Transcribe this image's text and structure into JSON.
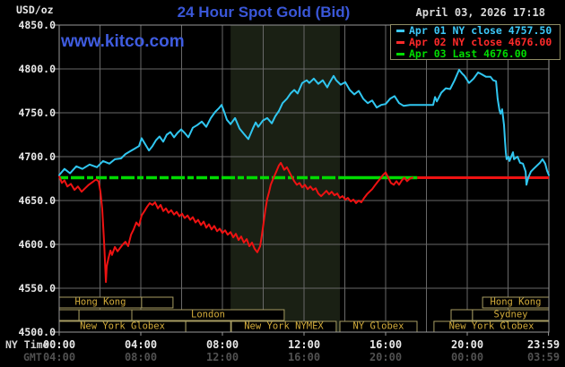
{
  "header": {
    "units": "USD/oz",
    "title": "24 Hour Spot Gold (Bid)",
    "datetime": "April 03, 2026 17:18",
    "watermark": "www.kitco.com"
  },
  "legend": {
    "items": [
      {
        "label": "Apr 01 NY close 4757.50",
        "color": "#3cc8f8"
      },
      {
        "label": "Apr 02 NY close 4676.00",
        "color": "#ff2a2a"
      },
      {
        "label": "Apr 03 Last 4676.00",
        "color": "#00dd00"
      }
    ]
  },
  "footer": {
    "ny_label": "NY Time",
    "gmt_label": "GMT"
  },
  "chart_data": {
    "type": "line",
    "title": "24 Hour Spot Gold (Bid)",
    "ylabel": "USD/oz",
    "colors": {
      "plot_bg": "#000000",
      "band": "#1a2014",
      "grid": "#686868",
      "border": "#989898",
      "tick_label": "#e8e8e8",
      "gmt_label": "#515151",
      "session_border": "#a79d62",
      "session_text": "#d2ab3a",
      "cyan": "#30c6f0",
      "red": "#ee1212",
      "green": "#00da00"
    },
    "x_axis": {
      "range_hours": [
        0,
        24
      ],
      "tick_hours": [
        0,
        4,
        8,
        12,
        16,
        20,
        23.983
      ],
      "ny_ticks": [
        "00:00",
        "04:00",
        "08:00",
        "12:00",
        "16:00",
        "20:00",
        "23:59"
      ],
      "gmt_ticks": [
        "04:00",
        "08:00",
        "12:00",
        "16:00",
        "20:00",
        "00:00",
        "03:59"
      ]
    },
    "y_axis": {
      "units": "USD/oz",
      "range": [
        4500,
        4850
      ],
      "tick_step": 50,
      "ticks": [
        "4850.0",
        "4800.0",
        "4750.0",
        "4700.0",
        "4650.0",
        "4600.0",
        "4550.0",
        "4500.0"
      ]
    },
    "grid": {
      "x_step_hours": 2,
      "y_step": 50
    },
    "shaded_band_hours": [
      8.4,
      13.76
    ],
    "ref_lines": [
      {
        "name": "apr03-last-dashed",
        "value": 4676.0,
        "color": "#00da00",
        "style": "dashed",
        "from_hour": 0,
        "to_hour": 13.7,
        "width": 3.5
      },
      {
        "name": "apr03-last-solid",
        "value": 4676.0,
        "color": "#00da00",
        "style": "solid",
        "from_hour": 13.7,
        "to_hour": 17.55,
        "width": 3.5
      },
      {
        "name": "apr02-close",
        "value": 4676.0,
        "color": "#ee1212",
        "style": "solid",
        "from_hour": 17.55,
        "to_hour": 24,
        "width": 3
      }
    ],
    "sessions": [
      [
        {
          "from": 0,
          "to": 4.04,
          "label": "Hong Kong"
        },
        {
          "from": 4.04,
          "to": 5.58,
          "label": ""
        },
        {
          "from": 20.75,
          "to": 24,
          "label": "Hong Kong"
        }
      ],
      [
        {
          "from": 0,
          "to": 0.97,
          "label": ""
        },
        {
          "from": 0.97,
          "to": 3.56,
          "label": ""
        },
        {
          "from": 3.56,
          "to": 11.03,
          "label": "London"
        },
        {
          "from": 19.21,
          "to": 20.26,
          "label": ""
        },
        {
          "from": 20.26,
          "to": 24,
          "label": "Sydney"
        }
      ],
      [
        {
          "from": 0,
          "to": 6.2,
          "label": "New York Globex"
        },
        {
          "from": 6.2,
          "to": 8.4,
          "label": ""
        },
        {
          "from": 8.44,
          "to": 13.58,
          "label": "New York NYMEX"
        },
        {
          "from": 13.76,
          "to": 17.54,
          "label": "NY Globex"
        },
        {
          "from": 18.37,
          "to": 24,
          "label": "New York Globex"
        }
      ]
    ],
    "series": [
      {
        "name": "previous-day",
        "color": "#30c6f0",
        "width": 2,
        "points": [
          [
            0,
            4679
          ],
          [
            0.26,
            4686
          ],
          [
            0.53,
            4681
          ],
          [
            0.84,
            4689
          ],
          [
            1.14,
            4686
          ],
          [
            1.49,
            4691
          ],
          [
            1.85,
            4688
          ],
          [
            2.15,
            4695
          ],
          [
            2.46,
            4692
          ],
          [
            2.73,
            4697
          ],
          [
            3.03,
            4698
          ],
          [
            3.25,
            4703
          ],
          [
            3.47,
            4706
          ],
          [
            3.69,
            4709
          ],
          [
            3.91,
            4712
          ],
          [
            4.04,
            4721
          ],
          [
            4.22,
            4714
          ],
          [
            4.4,
            4707
          ],
          [
            4.57,
            4712
          ],
          [
            4.75,
            4719
          ],
          [
            4.92,
            4723
          ],
          [
            5.1,
            4717
          ],
          [
            5.27,
            4725
          ],
          [
            5.45,
            4728
          ],
          [
            5.63,
            4722
          ],
          [
            5.8,
            4727
          ],
          [
            5.98,
            4731
          ],
          [
            6.15,
            4727
          ],
          [
            6.33,
            4722
          ],
          [
            6.55,
            4733
          ],
          [
            6.77,
            4736
          ],
          [
            6.99,
            4740
          ],
          [
            7.21,
            4734
          ],
          [
            7.43,
            4744
          ],
          [
            7.65,
            4751
          ],
          [
            7.82,
            4755
          ],
          [
            7.96,
            4759
          ],
          [
            8.09,
            4751
          ],
          [
            8.22,
            4742
          ],
          [
            8.4,
            4737
          ],
          [
            8.62,
            4744
          ],
          [
            8.84,
            4732
          ],
          [
            9.05,
            4726
          ],
          [
            9.27,
            4720
          ],
          [
            9.49,
            4732
          ],
          [
            9.63,
            4739
          ],
          [
            9.76,
            4734
          ],
          [
            9.98,
            4741
          ],
          [
            10.2,
            4744
          ],
          [
            10.42,
            4738
          ],
          [
            10.59,
            4746
          ],
          [
            10.77,
            4752
          ],
          [
            10.95,
            4761
          ],
          [
            11.16,
            4766
          ],
          [
            11.34,
            4772
          ],
          [
            11.52,
            4776
          ],
          [
            11.69,
            4772
          ],
          [
            11.91,
            4784
          ],
          [
            12.13,
            4787
          ],
          [
            12.26,
            4784
          ],
          [
            12.48,
            4789
          ],
          [
            12.7,
            4783
          ],
          [
            12.92,
            4787
          ],
          [
            13.14,
            4779
          ],
          [
            13.27,
            4785
          ],
          [
            13.45,
            4792
          ],
          [
            13.58,
            4787
          ],
          [
            13.8,
            4782
          ],
          [
            14.02,
            4785
          ],
          [
            14.24,
            4776
          ],
          [
            14.46,
            4771
          ],
          [
            14.68,
            4775
          ],
          [
            14.9,
            4766
          ],
          [
            15.12,
            4761
          ],
          [
            15.34,
            4764
          ],
          [
            15.56,
            4756
          ],
          [
            15.78,
            4759
          ],
          [
            16,
            4760
          ],
          [
            16.22,
            4766
          ],
          [
            16.44,
            4769
          ],
          [
            16.66,
            4761
          ],
          [
            16.88,
            4758
          ],
          [
            17.19,
            4759
          ],
          [
            18.33,
            4759
          ],
          [
            18.42,
            4768
          ],
          [
            18.51,
            4763
          ],
          [
            18.73,
            4773
          ],
          [
            18.95,
            4778
          ],
          [
            19.16,
            4777
          ],
          [
            19.38,
            4787
          ],
          [
            19.6,
            4799
          ],
          [
            19.74,
            4795
          ],
          [
            19.87,
            4792
          ],
          [
            20.09,
            4784
          ],
          [
            20.31,
            4789
          ],
          [
            20.53,
            4796
          ],
          [
            20.7,
            4794
          ],
          [
            20.92,
            4791
          ],
          [
            21.14,
            4791
          ],
          [
            21.27,
            4787
          ],
          [
            21.41,
            4786
          ],
          [
            21.49,
            4766
          ],
          [
            21.58,
            4753
          ],
          [
            21.63,
            4749
          ],
          [
            21.71,
            4754
          ],
          [
            21.8,
            4736
          ],
          [
            21.85,
            4718
          ],
          [
            21.89,
            4705
          ],
          [
            21.93,
            4697
          ],
          [
            22.02,
            4700
          ],
          [
            22.07,
            4695
          ],
          [
            22.24,
            4705
          ],
          [
            22.29,
            4697
          ],
          [
            22.46,
            4700
          ],
          [
            22.59,
            4693
          ],
          [
            22.73,
            4692
          ],
          [
            22.86,
            4683
          ],
          [
            22.9,
            4668
          ],
          [
            22.99,
            4676
          ],
          [
            23.12,
            4683
          ],
          [
            23.25,
            4686
          ],
          [
            23.38,
            4689
          ],
          [
            23.56,
            4693
          ],
          [
            23.69,
            4697
          ],
          [
            23.82,
            4692
          ],
          [
            23.91,
            4684
          ],
          [
            24,
            4679
          ]
        ]
      },
      {
        "name": "current-day",
        "color": "#ee1212",
        "width": 2,
        "points": [
          [
            0,
            4678
          ],
          [
            0.13,
            4670
          ],
          [
            0.26,
            4673
          ],
          [
            0.4,
            4666
          ],
          [
            0.57,
            4669
          ],
          [
            0.75,
            4662
          ],
          [
            0.92,
            4666
          ],
          [
            1.1,
            4660
          ],
          [
            1.27,
            4664
          ],
          [
            1.45,
            4668
          ],
          [
            1.63,
            4671
          ],
          [
            1.8,
            4674
          ],
          [
            1.93,
            4672
          ],
          [
            2.02,
            4660
          ],
          [
            2.11,
            4640
          ],
          [
            2.2,
            4602
          ],
          [
            2.29,
            4557
          ],
          [
            2.33,
            4575
          ],
          [
            2.42,
            4585
          ],
          [
            2.51,
            4593
          ],
          [
            2.59,
            4588
          ],
          [
            2.73,
            4597
          ],
          [
            2.86,
            4592
          ],
          [
            2.99,
            4596
          ],
          [
            3.12,
            4600
          ],
          [
            3.25,
            4603
          ],
          [
            3.38,
            4598
          ],
          [
            3.52,
            4611
          ],
          [
            3.65,
            4617
          ],
          [
            3.78,
            4625
          ],
          [
            3.91,
            4621
          ],
          [
            4.04,
            4633
          ],
          [
            4.18,
            4638
          ],
          [
            4.31,
            4643
          ],
          [
            4.44,
            4647
          ],
          [
            4.57,
            4645
          ],
          [
            4.7,
            4648
          ],
          [
            4.84,
            4641
          ],
          [
            4.97,
            4645
          ],
          [
            5.1,
            4638
          ],
          [
            5.23,
            4641
          ],
          [
            5.36,
            4636
          ],
          [
            5.49,
            4639
          ],
          [
            5.63,
            4634
          ],
          [
            5.76,
            4637
          ],
          [
            5.89,
            4632
          ],
          [
            6.02,
            4635
          ],
          [
            6.15,
            4630
          ],
          [
            6.29,
            4633
          ],
          [
            6.42,
            4628
          ],
          [
            6.55,
            4631
          ],
          [
            6.68,
            4625
          ],
          [
            6.81,
            4628
          ],
          [
            6.95,
            4622
          ],
          [
            7.08,
            4626
          ],
          [
            7.21,
            4619
          ],
          [
            7.34,
            4623
          ],
          [
            7.47,
            4617
          ],
          [
            7.6,
            4621
          ],
          [
            7.74,
            4615
          ],
          [
            7.87,
            4618
          ],
          [
            8,
            4613
          ],
          [
            8.13,
            4616
          ],
          [
            8.26,
            4611
          ],
          [
            8.4,
            4614
          ],
          [
            8.53,
            4608
          ],
          [
            8.66,
            4612
          ],
          [
            8.79,
            4605
          ],
          [
            8.92,
            4609
          ],
          [
            9.05,
            4602
          ],
          [
            9.19,
            4606
          ],
          [
            9.32,
            4598
          ],
          [
            9.45,
            4602
          ],
          [
            9.58,
            4595
          ],
          [
            9.71,
            4591
          ],
          [
            9.85,
            4598
          ],
          [
            9.93,
            4610
          ],
          [
            10.02,
            4625
          ],
          [
            10.11,
            4640
          ],
          [
            10.2,
            4652
          ],
          [
            10.29,
            4660
          ],
          [
            10.37,
            4668
          ],
          [
            10.51,
            4676
          ],
          [
            10.64,
            4683
          ],
          [
            10.77,
            4690
          ],
          [
            10.86,
            4693
          ],
          [
            10.95,
            4689
          ],
          [
            11.03,
            4685
          ],
          [
            11.16,
            4688
          ],
          [
            11.25,
            4684
          ],
          [
            11.38,
            4678
          ],
          [
            11.52,
            4672
          ],
          [
            11.65,
            4668
          ],
          [
            11.78,
            4670
          ],
          [
            11.91,
            4665
          ],
          [
            12.04,
            4668
          ],
          [
            12.18,
            4663
          ],
          [
            12.31,
            4666
          ],
          [
            12.44,
            4662
          ],
          [
            12.57,
            4664
          ],
          [
            12.7,
            4658
          ],
          [
            12.84,
            4655
          ],
          [
            12.97,
            4658
          ],
          [
            13.1,
            4661
          ],
          [
            13.23,
            4657
          ],
          [
            13.36,
            4660
          ],
          [
            13.49,
            4656
          ],
          [
            13.63,
            4658
          ],
          [
            13.76,
            4653
          ],
          [
            13.89,
            4655
          ],
          [
            14.02,
            4651
          ],
          [
            14.15,
            4653
          ],
          [
            14.29,
            4649
          ],
          [
            14.42,
            4651
          ],
          [
            14.55,
            4647
          ],
          [
            14.68,
            4650
          ],
          [
            14.81,
            4648
          ],
          [
            14.95,
            4653
          ],
          [
            15.08,
            4657
          ],
          [
            15.21,
            4660
          ],
          [
            15.34,
            4663
          ],
          [
            15.47,
            4667
          ],
          [
            15.6,
            4671
          ],
          [
            15.74,
            4675
          ],
          [
            15.87,
            4679
          ],
          [
            16,
            4682
          ],
          [
            16.13,
            4676
          ],
          [
            16.26,
            4670
          ],
          [
            16.4,
            4668
          ],
          [
            16.53,
            4672
          ],
          [
            16.66,
            4668
          ],
          [
            16.79,
            4673
          ],
          [
            16.92,
            4676
          ],
          [
            17.05,
            4672
          ],
          [
            17.19,
            4675
          ],
          [
            17.32,
            4676
          ]
        ]
      }
    ]
  }
}
